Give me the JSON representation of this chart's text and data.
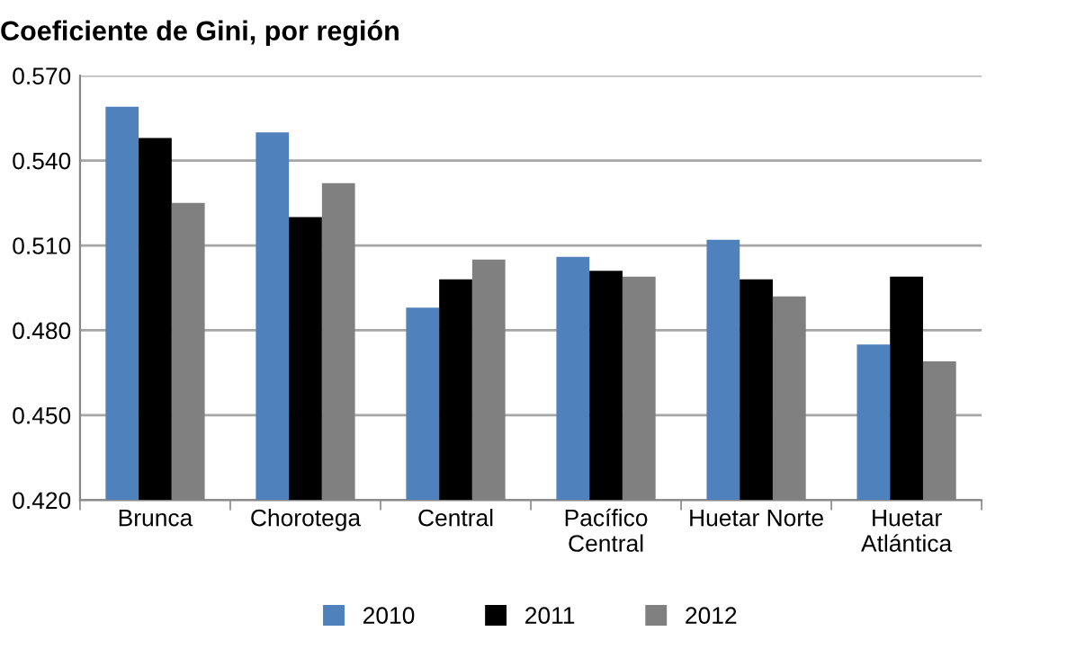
{
  "chart_data": {
    "type": "bar",
    "title": "Coeficiente de Gini, por región",
    "categories": [
      "Brunca",
      "Chorotega",
      "Central",
      "Pacífico\nCentral",
      "Huetar Norte",
      "Huetar\nAtlántica"
    ],
    "series": [
      {
        "name": "2010",
        "color": "#4f81bd",
        "values": [
          0.559,
          0.55,
          0.488,
          0.506,
          0.512,
          0.475
        ]
      },
      {
        "name": "2011",
        "color": "#000000",
        "values": [
          0.548,
          0.52,
          0.498,
          0.501,
          0.498,
          0.499
        ]
      },
      {
        "name": "2012",
        "color": "#808080",
        "values": [
          0.525,
          0.532,
          0.505,
          0.499,
          0.492,
          0.469
        ]
      }
    ],
    "ylim": [
      0.42,
      0.57
    ],
    "yticks": [
      {
        "value": 0.42,
        "label": "0.420"
      },
      {
        "value": 0.45,
        "label": "0.450"
      },
      {
        "value": 0.48,
        "label": "0.480"
      },
      {
        "value": 0.51,
        "label": "0.510"
      },
      {
        "value": 0.54,
        "label": "0.540"
      },
      {
        "value": 0.57,
        "label": "0.570"
      }
    ],
    "grid": "y",
    "legend": "bottom"
  }
}
